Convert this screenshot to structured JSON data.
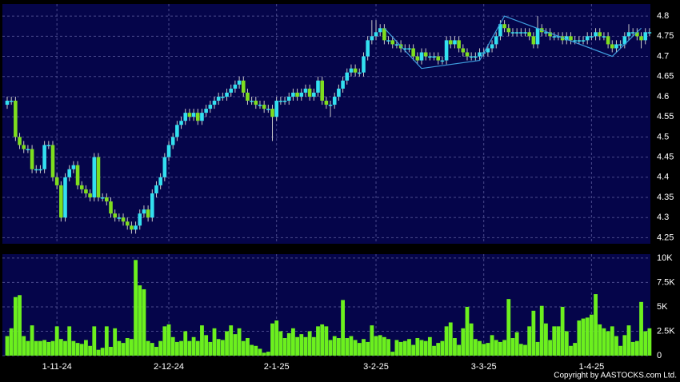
{
  "chart_data": [
    {
      "type": "candlestick",
      "categories": [
        null,
        null,
        null,
        null,
        null,
        null,
        null,
        null,
        null,
        null,
        null,
        null,
        "1-11-24",
        null,
        null,
        null,
        null,
        null,
        null,
        null,
        null,
        null,
        null,
        null,
        null,
        null,
        null,
        null,
        null,
        null,
        null,
        null,
        null,
        null,
        null,
        null,
        null,
        null,
        null,
        "2-12-24",
        null,
        null,
        null,
        null,
        null,
        null,
        null,
        null,
        null,
        null,
        null,
        null,
        null,
        null,
        null,
        null,
        null,
        null,
        null,
        null,
        null,
        null,
        null,
        null,
        null,
        "2-1-25",
        null,
        null,
        null,
        null,
        null,
        null,
        null,
        null,
        null,
        null,
        null,
        null,
        null,
        null,
        null,
        null,
        null,
        null,
        null,
        null,
        null,
        null,
        null,
        "3-2-25",
        null,
        null,
        null,
        null,
        null,
        null,
        null,
        null,
        null,
        null,
        null,
        null,
        null,
        null,
        null,
        null,
        null,
        null,
        null,
        null,
        null,
        null,
        null,
        null,
        null,
        "3-3-25",
        null,
        null,
        null,
        null,
        null,
        null,
        null,
        null,
        null,
        null,
        null,
        null,
        null,
        null,
        null,
        null,
        null,
        null,
        null,
        null,
        null,
        null,
        null,
        null,
        null,
        "1-4-25",
        null,
        null,
        null,
        null,
        null,
        null,
        null,
        null,
        null,
        null,
        null,
        null,
        null,
        null
      ],
      "open": [
        4.58,
        4.59,
        4.59,
        4.5,
        4.48,
        4.47,
        4.47,
        4.42,
        4.42,
        4.42,
        4.48,
        4.48,
        4.4,
        4.38,
        4.3,
        4.4,
        4.42,
        4.43,
        4.38,
        4.37,
        4.36,
        4.35,
        4.45,
        4.35,
        4.35,
        4.34,
        4.31,
        4.3,
        4.3,
        4.29,
        4.28,
        4.27,
        4.28,
        4.31,
        4.32,
        4.3,
        4.36,
        4.38,
        4.4,
        4.45,
        4.48,
        4.5,
        4.53,
        4.54,
        4.56,
        4.55,
        4.56,
        4.54,
        4.56,
        4.57,
        4.58,
        4.59,
        4.6,
        4.6,
        4.61,
        4.62,
        4.63,
        4.64,
        4.61,
        4.59,
        4.59,
        4.58,
        4.58,
        4.57,
        4.57,
        4.55,
        4.59,
        4.59,
        4.59,
        4.6,
        4.61,
        4.6,
        4.61,
        4.62,
        4.6,
        4.61,
        4.64,
        4.59,
        4.58,
        4.58,
        4.6,
        4.62,
        4.64,
        4.66,
        4.67,
        4.66,
        4.66,
        4.7,
        4.74,
        4.75,
        4.76,
        4.77,
        4.74,
        4.74,
        4.73,
        4.73,
        4.72,
        4.72,
        4.72,
        4.7,
        4.69,
        4.71,
        4.7,
        4.7,
        4.7,
        4.69,
        4.69,
        4.74,
        4.73,
        4.74,
        4.72,
        4.71,
        4.7,
        4.7,
        4.7,
        4.71,
        4.71,
        4.72,
        4.73,
        4.75,
        4.78,
        4.77,
        4.76,
        4.76,
        4.76,
        4.76,
        4.76,
        4.75,
        4.73,
        4.77,
        4.76,
        4.76,
        4.75,
        4.75,
        4.75,
        4.74,
        4.75,
        4.74,
        4.74,
        4.74,
        4.74,
        4.75,
        4.75,
        4.76,
        4.75,
        4.75,
        4.73,
        4.72,
        4.73,
        4.73,
        4.75,
        4.76,
        4.76,
        4.75,
        4.74,
        4.76
      ],
      "high": [
        4.6,
        4.6,
        4.6,
        4.51,
        4.49,
        4.48,
        4.48,
        4.43,
        4.43,
        4.49,
        4.49,
        4.49,
        4.41,
        4.39,
        4.41,
        4.43,
        4.44,
        4.44,
        4.39,
        4.38,
        4.37,
        4.46,
        4.46,
        4.36,
        4.36,
        4.35,
        4.32,
        4.31,
        4.31,
        4.3,
        4.29,
        4.29,
        4.32,
        4.33,
        4.33,
        4.37,
        4.39,
        4.41,
        4.46,
        4.49,
        4.51,
        4.54,
        4.55,
        4.57,
        4.57,
        4.57,
        4.57,
        4.57,
        4.58,
        4.59,
        4.6,
        4.61,
        4.61,
        4.62,
        4.63,
        4.64,
        4.65,
        4.65,
        4.62,
        4.6,
        4.6,
        4.59,
        4.59,
        4.58,
        4.58,
        4.6,
        4.6,
        4.6,
        4.61,
        4.62,
        4.62,
        4.62,
        4.63,
        4.63,
        4.62,
        4.65,
        4.65,
        4.6,
        4.59,
        4.61,
        4.63,
        4.65,
        4.67,
        4.68,
        4.68,
        4.67,
        4.71,
        4.75,
        4.79,
        4.79,
        4.78,
        4.78,
        4.75,
        4.75,
        4.74,
        4.74,
        4.73,
        4.73,
        4.73,
        4.71,
        4.72,
        4.72,
        4.71,
        4.71,
        4.71,
        4.7,
        4.75,
        4.75,
        4.75,
        4.75,
        4.73,
        4.72,
        4.71,
        4.71,
        4.72,
        4.72,
        4.73,
        4.74,
        4.76,
        4.79,
        4.79,
        4.78,
        4.77,
        4.77,
        4.77,
        4.77,
        4.77,
        4.76,
        4.8,
        4.78,
        4.77,
        4.77,
        4.76,
        4.76,
        4.76,
        4.76,
        4.76,
        4.75,
        4.75,
        4.75,
        4.76,
        4.76,
        4.77,
        4.77,
        4.76,
        4.76,
        4.74,
        4.74,
        4.74,
        4.76,
        4.78,
        4.77,
        4.77,
        4.76,
        4.77,
        4.77
      ],
      "low": [
        4.57,
        4.58,
        4.49,
        4.47,
        4.46,
        4.46,
        4.41,
        4.41,
        4.41,
        4.41,
        4.47,
        4.39,
        4.37,
        4.29,
        4.29,
        4.39,
        4.41,
        4.37,
        4.36,
        4.35,
        4.34,
        4.34,
        4.34,
        4.34,
        4.33,
        4.3,
        4.29,
        4.29,
        4.28,
        4.27,
        4.26,
        4.26,
        4.27,
        4.3,
        4.29,
        4.29,
        4.35,
        4.37,
        4.39,
        4.44,
        4.47,
        4.49,
        4.52,
        4.53,
        4.54,
        4.54,
        4.53,
        4.53,
        4.55,
        4.56,
        4.57,
        4.58,
        4.59,
        4.59,
        4.6,
        4.61,
        4.62,
        4.6,
        4.58,
        4.58,
        4.57,
        4.57,
        4.56,
        4.56,
        4.49,
        4.54,
        4.58,
        4.58,
        4.58,
        4.59,
        4.59,
        4.59,
        4.6,
        4.59,
        4.59,
        4.6,
        4.58,
        4.57,
        4.55,
        4.57,
        4.59,
        4.61,
        4.63,
        4.65,
        4.65,
        4.65,
        4.65,
        4.69,
        4.73,
        4.74,
        4.75,
        4.73,
        4.73,
        4.72,
        4.72,
        4.71,
        4.71,
        4.71,
        4.69,
        4.68,
        4.68,
        4.69,
        4.69,
        4.69,
        4.68,
        4.68,
        4.68,
        4.72,
        4.72,
        4.71,
        4.7,
        4.69,
        4.69,
        4.69,
        4.69,
        4.7,
        4.7,
        4.71,
        4.72,
        4.74,
        4.76,
        4.75,
        4.75,
        4.75,
        4.75,
        4.75,
        4.74,
        4.72,
        4.72,
        4.75,
        4.75,
        4.74,
        4.74,
        4.74,
        4.73,
        4.73,
        4.73,
        4.73,
        4.73,
        4.73,
        4.73,
        4.74,
        4.74,
        4.74,
        4.74,
        4.72,
        4.71,
        4.71,
        4.72,
        4.72,
        4.74,
        4.75,
        4.74,
        4.72,
        4.73,
        4.75
      ],
      "close": [
        4.59,
        4.59,
        4.5,
        4.48,
        4.47,
        4.47,
        4.42,
        4.42,
        4.42,
        4.48,
        4.48,
        4.4,
        4.38,
        4.3,
        4.4,
        4.42,
        4.43,
        4.38,
        4.37,
        4.36,
        4.35,
        4.45,
        4.35,
        4.35,
        4.34,
        4.31,
        4.3,
        4.3,
        4.29,
        4.28,
        4.27,
        4.28,
        4.31,
        4.32,
        4.3,
        4.36,
        4.38,
        4.4,
        4.45,
        4.48,
        4.5,
        4.53,
        4.54,
        4.56,
        4.55,
        4.56,
        4.54,
        4.56,
        4.57,
        4.58,
        4.59,
        4.6,
        4.6,
        4.61,
        4.62,
        4.63,
        4.64,
        4.61,
        4.59,
        4.59,
        4.58,
        4.58,
        4.57,
        4.57,
        4.55,
        4.59,
        4.59,
        4.59,
        4.6,
        4.61,
        4.6,
        4.61,
        4.62,
        4.6,
        4.61,
        4.64,
        4.59,
        4.58,
        4.58,
        4.6,
        4.62,
        4.64,
        4.66,
        4.67,
        4.66,
        4.66,
        4.7,
        4.74,
        4.75,
        4.76,
        4.77,
        4.74,
        4.74,
        4.73,
        4.73,
        4.72,
        4.72,
        4.72,
        4.7,
        4.69,
        4.71,
        4.7,
        4.7,
        4.7,
        4.69,
        4.69,
        4.74,
        4.73,
        4.74,
        4.72,
        4.71,
        4.7,
        4.7,
        4.7,
        4.71,
        4.71,
        4.72,
        4.73,
        4.75,
        4.78,
        4.77,
        4.76,
        4.76,
        4.76,
        4.76,
        4.76,
        4.75,
        4.73,
        4.77,
        4.76,
        4.76,
        4.75,
        4.75,
        4.75,
        4.74,
        4.75,
        4.74,
        4.74,
        4.74,
        4.74,
        4.75,
        4.75,
        4.76,
        4.75,
        4.75,
        4.73,
        4.72,
        4.73,
        4.73,
        4.75,
        4.76,
        4.76,
        4.75,
        4.74,
        4.76,
        4.76
      ],
      "up_color": "#33e0f0",
      "down_color": "#7ede1e",
      "ylim": [
        4.235,
        4.83
      ],
      "yticks": [
        4.25,
        4.3,
        4.35,
        4.4,
        4.45,
        4.5,
        4.55,
        4.6,
        4.65,
        4.7,
        4.75,
        4.8
      ],
      "grid": true,
      "trend_line": {
        "color": "#3f9fe0",
        "x": [
          91,
          100,
          114,
          120,
          146,
          153
        ],
        "values": [
          4.77,
          4.67,
          4.69,
          4.8,
          4.7,
          4.77
        ]
      }
    },
    {
      "type": "bar",
      "values": [
        2000,
        2800,
        6000,
        6200,
        2000,
        1500,
        3100,
        1500,
        1500,
        1600,
        1400,
        1500,
        3000,
        1700,
        1500,
        3000,
        1500,
        1300,
        1200,
        1600,
        1000,
        3000,
        600,
        800,
        3000,
        900,
        2800,
        1500,
        1300,
        1800,
        1700,
        9800,
        7200,
        6800,
        1500,
        1300,
        900,
        1500,
        3000,
        3200,
        1900,
        1400,
        1500,
        2500,
        1500,
        1900,
        1500,
        3100,
        2100,
        1400,
        2800,
        1700,
        1600,
        2500,
        3100,
        2200,
        2800,
        1500,
        1800,
        1100,
        1000,
        700,
        300,
        400,
        3300,
        3600,
        2500,
        1800,
        2300,
        2800,
        1900,
        2200,
        1900,
        2500,
        1900,
        3000,
        3200,
        3000,
        1600,
        2000,
        1800,
        5700,
        1800,
        2000,
        1600,
        1300,
        1700,
        1400,
        3100,
        2000,
        2100,
        1900,
        1700,
        400,
        1600,
        1400,
        1500,
        1700,
        1100,
        1800,
        1600,
        1500,
        1900,
        1000,
        1300,
        1500,
        3000,
        3400,
        1800,
        1100,
        2800,
        5000,
        3300,
        1700,
        1500,
        1200,
        1300,
        2100,
        1600,
        1400,
        1600,
        5800,
        1800,
        2400,
        1200,
        1100,
        3000,
        4600,
        1400,
        5100,
        3300,
        1600,
        3000,
        3000,
        5000,
        2500,
        1000,
        1300,
        3600,
        3800,
        3900,
        4200,
        6300,
        3200,
        2800,
        2500,
        3000,
        2000,
        1000,
        2100,
        3100,
        1400,
        1500,
        5500,
        2500,
        2800
      ],
      "color": "#6cf01e",
      "ylim": [
        0,
        10400
      ],
      "yticks": [
        {
          "value": 10000,
          "label": "10K"
        },
        {
          "value": 7500,
          "label": "7.5K"
        },
        {
          "value": 5000,
          "label": "5K"
        },
        {
          "value": 2500,
          "label": "2.5K"
        },
        0
      ],
      "grid": true
    }
  ],
  "footer": "Copyright by AASTOCKS.com Ltd."
}
